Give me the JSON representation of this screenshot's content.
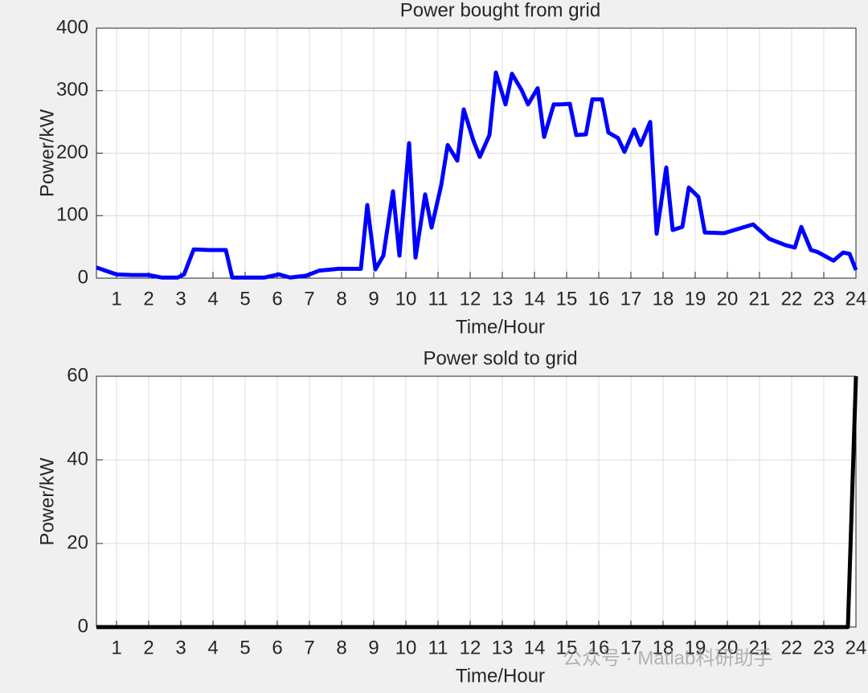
{
  "chart_data": [
    {
      "type": "line",
      "title": "Power bought from grid",
      "xlabel": "Time/Hour",
      "ylabel": "Power/kW",
      "x": [
        0.375,
        1,
        1.5,
        2,
        2.4,
        2.9,
        3.1,
        3.4,
        3.9,
        4.4,
        4.6,
        5.6,
        6.05,
        6.4,
        6.9,
        7.3,
        7.9,
        8.6,
        8.8,
        9.05,
        9.3,
        9.6,
        9.8,
        10.1,
        10.3,
        10.6,
        10.8,
        11.1,
        11.3,
        11.6,
        11.8,
        12.1,
        12.3,
        12.6,
        12.8,
        13.1,
        13.3,
        13.6,
        13.8,
        14.1,
        14.3,
        14.6,
        14.8,
        15.1,
        15.3,
        15.6,
        15.8,
        16.1,
        16.3,
        16.6,
        16.8,
        17.1,
        17.3,
        17.6,
        17.8,
        18.1,
        18.3,
        18.6,
        18.8,
        19.1,
        19.3,
        19.9,
        20.8,
        21.3,
        21.8,
        22.1,
        22.3,
        22.6,
        22.8,
        23.3,
        23.6,
        23.8,
        24
      ],
      "series": [
        {
          "color": "#0000ff",
          "values": [
            17,
            6,
            5,
            5,
            1,
            1,
            6,
            46,
            45,
            45,
            1,
            1,
            6,
            1,
            4,
            12,
            15,
            15,
            117,
            14,
            36,
            139,
            36,
            216,
            33,
            134,
            81,
            149,
            213,
            188,
            270,
            220,
            194,
            229,
            329,
            278,
            327,
            301,
            278,
            304,
            226,
            278,
            278,
            279,
            229,
            230,
            286,
            286,
            233,
            224,
            202,
            238,
            213,
            250,
            71,
            177,
            77,
            82,
            145,
            130,
            73,
            72,
            86,
            63,
            53,
            49,
            82,
            45,
            42,
            28,
            41,
            39,
            13
          ]
        }
      ],
      "xlim": [
        0.375,
        24
      ],
      "ylim": [
        0,
        400
      ],
      "xticks": [
        1,
        2,
        3,
        4,
        5,
        6,
        7,
        8,
        9,
        10,
        11,
        12,
        13,
        14,
        15,
        16,
        17,
        18,
        19,
        20,
        21,
        22,
        23,
        24
      ],
      "yticks": [
        0,
        100,
        200,
        300,
        400
      ],
      "grid": true
    },
    {
      "type": "line",
      "title": "Power sold to grid",
      "xlabel": "Time/Hour",
      "ylabel": "Power/kW",
      "x": [
        0.375,
        23.75,
        24
      ],
      "series": [
        {
          "color": "#000000",
          "values": [
            0,
            0,
            60
          ]
        }
      ],
      "xlim": [
        0.375,
        24
      ],
      "ylim": [
        0,
        60
      ],
      "xticks": [
        1,
        2,
        3,
        4,
        5,
        6,
        7,
        8,
        9,
        10,
        11,
        12,
        13,
        14,
        15,
        16,
        17,
        18,
        19,
        20,
        21,
        22,
        23,
        24
      ],
      "yticks": [
        0,
        20,
        40,
        60
      ],
      "grid": true
    }
  ],
  "watermark": "公众号 · Matlab科研助手"
}
